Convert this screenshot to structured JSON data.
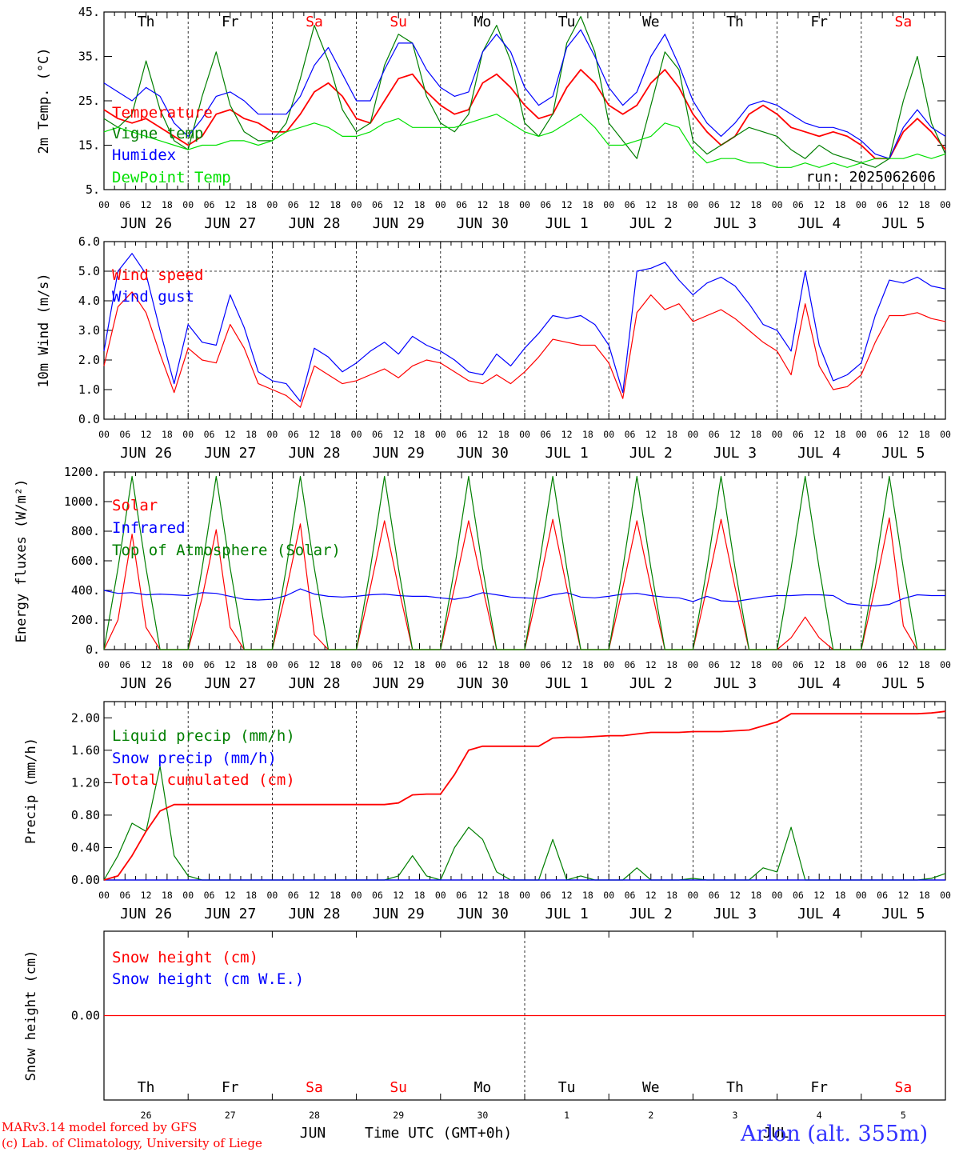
{
  "colors": {
    "red": "#ff0000",
    "green": "#007f00",
    "blue": "#0000ff",
    "lightgreen": "#00e000",
    "weekend": "#ff0000",
    "text": "#000000"
  },
  "x_axis": {
    "hour_labels": [
      "00",
      "06",
      "12",
      "18"
    ],
    "end_hour_label": "00",
    "date_labels": [
      "JUN 26",
      "JUN 27",
      "JUN 28",
      "JUN 29",
      "JUN 30",
      "JUL  1",
      "JUL  2",
      "JUL  3",
      "JUL  4",
      "JUL  5"
    ],
    "weekday_labels": [
      "Th",
      "Fr",
      "Sa",
      "Su",
      "Mo",
      "Tu",
      "We",
      "Th",
      "Fr",
      "Sa"
    ],
    "weekend_flags": [
      false,
      false,
      true,
      true,
      false,
      false,
      false,
      false,
      false,
      true
    ],
    "bottom_day_numbers": [
      "26",
      "27",
      "28",
      "29",
      "30",
      "1",
      "2",
      "3",
      "4",
      "5"
    ],
    "bottom_month_labels": [
      "JUN",
      "JUL"
    ],
    "bottom_title": "Time UTC (GMT+0h)"
  },
  "footer": {
    "credit_line1": "MARv3.14 model forced by GFS",
    "credit_line2": "(c) Lab. of Climatology, University of Liege",
    "station": "Arlon (alt. 355m)"
  },
  "chart_data": [
    {
      "type": "line",
      "ylabel": "2m Temp. (°C)",
      "yticks": [
        "5.",
        "15.",
        "25.",
        "35.",
        "45."
      ],
      "ylim": [
        5,
        45
      ],
      "annotation": "run: 2025062606",
      "series": [
        {
          "name": "Temperature",
          "color": "#ff0000",
          "values": [
            23,
            21,
            20,
            21,
            19,
            17,
            15,
            17,
            22,
            23,
            21,
            20,
            18,
            18,
            22,
            27,
            29,
            26,
            21,
            20,
            25,
            30,
            31,
            27,
            24,
            22,
            23,
            29,
            31,
            28,
            24,
            21,
            22,
            28,
            32,
            29,
            24,
            22,
            24,
            29,
            32,
            28,
            22,
            18,
            15,
            17,
            22,
            24,
            22,
            19,
            18,
            17,
            18,
            17,
            15,
            12,
            12,
            18,
            21,
            18,
            14
          ]
        },
        {
          "name": "Vigne temp",
          "color": "#007f00",
          "values": [
            21,
            19,
            22,
            34,
            23,
            16,
            14,
            26,
            36,
            24,
            18,
            16,
            16,
            20,
            30,
            42,
            34,
            23,
            18,
            20,
            33,
            40,
            38,
            26,
            20,
            18,
            22,
            36,
            42,
            34,
            20,
            17,
            22,
            38,
            44,
            36,
            20,
            16,
            12,
            24,
            36,
            32,
            16,
            13,
            15,
            17,
            19,
            18,
            17,
            14,
            12,
            15,
            13,
            12,
            11,
            10,
            12,
            25,
            35,
            20,
            13
          ]
        },
        {
          "name": "Humidex",
          "color": "#0000ff",
          "values": [
            29,
            27,
            25,
            28,
            26,
            20,
            17,
            21,
            26,
            27,
            25,
            22,
            22,
            22,
            26,
            33,
            37,
            31,
            25,
            25,
            32,
            38,
            38,
            32,
            28,
            26,
            27,
            36,
            40,
            36,
            28,
            24,
            26,
            37,
            41,
            35,
            28,
            24,
            27,
            35,
            40,
            33,
            25,
            20,
            17,
            20,
            24,
            25,
            24,
            22,
            20,
            19,
            19,
            18,
            16,
            13,
            12,
            19,
            23,
            19,
            17
          ]
        },
        {
          "name": "DewPoint Temp",
          "color": "#00e000",
          "values": [
            18,
            19,
            18,
            17,
            16,
            15,
            14,
            15,
            15,
            16,
            16,
            15,
            16,
            18,
            19,
            20,
            19,
            17,
            17,
            18,
            20,
            21,
            19,
            19,
            19,
            19,
            20,
            21,
            22,
            20,
            18,
            17,
            18,
            20,
            22,
            19,
            15,
            15,
            16,
            17,
            20,
            19,
            14,
            11,
            12,
            12,
            11,
            11,
            10,
            10,
            11,
            10,
            11,
            10,
            11,
            12,
            12,
            12,
            13,
            12,
            13
          ]
        }
      ]
    },
    {
      "type": "line",
      "ylabel": "10m Wind (m/s)",
      "yticks": [
        "0.0",
        "1.0",
        "2.0",
        "3.0",
        "4.0",
        "5.0",
        "6.0"
      ],
      "ylim": [
        0,
        6
      ],
      "reference_line": 5.0,
      "series": [
        {
          "name": "Wind speed",
          "color": "#ff0000",
          "values": [
            1.8,
            3.8,
            4.3,
            3.6,
            2.2,
            0.9,
            2.4,
            2.0,
            1.9,
            3.2,
            2.4,
            1.2,
            1.0,
            0.8,
            0.4,
            1.8,
            1.5,
            1.2,
            1.3,
            1.5,
            1.7,
            1.4,
            1.8,
            2.0,
            1.9,
            1.6,
            1.3,
            1.2,
            1.5,
            1.2,
            1.6,
            2.1,
            2.7,
            2.6,
            2.5,
            2.5,
            1.9,
            0.7,
            3.6,
            4.2,
            3.7,
            3.9,
            3.3,
            3.5,
            3.7,
            3.4,
            3.0,
            2.6,
            2.3,
            1.5,
            3.9,
            1.8,
            1.0,
            1.1,
            1.5,
            2.6,
            3.5,
            3.5,
            3.6,
            3.4,
            3.3
          ]
        },
        {
          "name": "Wind gust",
          "color": "#0000ff",
          "values": [
            2.3,
            5.0,
            5.6,
            4.9,
            3.0,
            1.2,
            3.2,
            2.6,
            2.5,
            4.2,
            3.1,
            1.6,
            1.3,
            1.2,
            0.6,
            2.4,
            2.1,
            1.6,
            1.9,
            2.3,
            2.6,
            2.2,
            2.8,
            2.5,
            2.3,
            2.0,
            1.6,
            1.5,
            2.2,
            1.8,
            2.4,
            2.9,
            3.5,
            3.4,
            3.5,
            3.2,
            2.5,
            0.9,
            5.0,
            5.1,
            5.3,
            4.7,
            4.2,
            4.6,
            4.8,
            4.5,
            3.9,
            3.2,
            3.0,
            2.3,
            5.0,
            2.5,
            1.3,
            1.5,
            1.9,
            3.5,
            4.7,
            4.6,
            4.8,
            4.5,
            4.4
          ]
        }
      ]
    },
    {
      "type": "line",
      "ylabel": "Energy fluxes (W/m²)",
      "yticks": [
        "0.",
        "200.",
        "400.",
        "600.",
        "800.",
        "1000.",
        "1200."
      ],
      "ylim": [
        0,
        1200
      ],
      "series": [
        {
          "name": "Solar",
          "color": "#ff0000",
          "values": [
            0,
            200,
            780,
            150,
            0,
            0,
            0,
            350,
            810,
            150,
            0,
            0,
            0,
            400,
            850,
            100,
            0,
            0,
            0,
            420,
            870,
            420,
            0,
            0,
            0,
            420,
            870,
            420,
            0,
            0,
            0,
            420,
            880,
            420,
            0,
            0,
            0,
            420,
            870,
            420,
            0,
            0,
            0,
            420,
            880,
            420,
            0,
            0,
            0,
            80,
            220,
            80,
            0,
            0,
            0,
            420,
            890,
            160,
            0,
            0,
            0
          ]
        },
        {
          "name": "Infrared",
          "color": "#0000ff",
          "values": [
            400,
            380,
            385,
            370,
            375,
            370,
            365,
            385,
            380,
            360,
            340,
            335,
            340,
            365,
            410,
            375,
            360,
            355,
            360,
            370,
            375,
            365,
            360,
            360,
            350,
            340,
            355,
            385,
            370,
            355,
            350,
            345,
            370,
            385,
            355,
            350,
            360,
            375,
            380,
            365,
            355,
            350,
            325,
            360,
            330,
            325,
            340,
            355,
            365,
            365,
            370,
            370,
            365,
            310,
            300,
            295,
            305,
            345,
            370,
            365,
            365
          ]
        },
        {
          "name": "Top of Atmosphere (Solar)",
          "color": "#007f00",
          "values": [
            0,
            550,
            1170,
            550,
            0,
            0,
            0,
            550,
            1170,
            550,
            0,
            0,
            0,
            550,
            1170,
            550,
            0,
            0,
            0,
            550,
            1170,
            550,
            0,
            0,
            0,
            550,
            1170,
            550,
            0,
            0,
            0,
            550,
            1170,
            550,
            0,
            0,
            0,
            550,
            1170,
            550,
            0,
            0,
            0,
            550,
            1170,
            550,
            0,
            0,
            0,
            550,
            1170,
            550,
            0,
            0,
            0,
            550,
            1170,
            550,
            0,
            0,
            0
          ]
        }
      ]
    },
    {
      "type": "line",
      "ylabel": "Precip (mm/h)",
      "yticks": [
        "0.00",
        "0.40",
        "0.80",
        "1.20",
        "1.60",
        "2.00"
      ],
      "ylim": [
        0,
        2.2
      ],
      "series": [
        {
          "name": "Liquid precip (mm/h)",
          "color": "#007f00",
          "values": [
            0,
            0.3,
            0.7,
            0.6,
            1.4,
            0.3,
            0.05,
            0,
            0,
            0,
            0,
            0,
            0,
            0,
            0,
            0,
            0,
            0,
            0,
            0,
            0,
            0.05,
            0.3,
            0.05,
            0,
            0.4,
            0.65,
            0.5,
            0.1,
            0,
            0,
            0,
            0.5,
            0,
            0.05,
            0,
            0,
            0,
            0.15,
            0,
            0,
            0,
            0.02,
            0,
            0,
            0,
            0,
            0.15,
            0.1,
            0.65,
            0,
            0,
            0,
            0,
            0,
            0,
            0,
            0,
            0,
            0.02,
            0.08
          ]
        },
        {
          "name": "Snow precip (mm/h)",
          "color": "#0000ff",
          "values": [
            0,
            0,
            0,
            0,
            0,
            0,
            0,
            0,
            0,
            0,
            0,
            0,
            0,
            0,
            0,
            0,
            0,
            0,
            0,
            0,
            0,
            0,
            0,
            0,
            0,
            0,
            0,
            0,
            0,
            0,
            0,
            0,
            0,
            0,
            0,
            0,
            0,
            0,
            0,
            0,
            0,
            0,
            0,
            0,
            0,
            0,
            0,
            0,
            0,
            0,
            0,
            0,
            0,
            0,
            0,
            0,
            0,
            0,
            0,
            0,
            0
          ]
        },
        {
          "name": "Total cumulated (cm)",
          "color": "#ff0000",
          "values": [
            0,
            0.05,
            0.3,
            0.6,
            0.85,
            0.93,
            0.93,
            0.93,
            0.93,
            0.93,
            0.93,
            0.93,
            0.93,
            0.93,
            0.93,
            0.93,
            0.93,
            0.93,
            0.93,
            0.93,
            0.93,
            0.95,
            1.05,
            1.06,
            1.06,
            1.3,
            1.6,
            1.65,
            1.65,
            1.65,
            1.65,
            1.65,
            1.75,
            1.76,
            1.76,
            1.77,
            1.78,
            1.78,
            1.8,
            1.82,
            1.82,
            1.82,
            1.83,
            1.83,
            1.83,
            1.84,
            1.85,
            1.9,
            1.95,
            2.05,
            2.05,
            2.05,
            2.05,
            2.05,
            2.05,
            2.05,
            2.05,
            2.05,
            2.05,
            2.06,
            2.08
          ]
        }
      ]
    },
    {
      "type": "line",
      "ylabel": "Snow height (cm)",
      "yticks": [
        "0.00"
      ],
      "ylim": [
        -1,
        1
      ],
      "series": [
        {
          "name": "Snow height (cm)",
          "color": "#ff0000",
          "values": [
            0,
            0,
            0,
            0,
            0,
            0,
            0,
            0,
            0,
            0,
            0,
            0,
            0,
            0,
            0,
            0,
            0,
            0,
            0,
            0,
            0,
            0,
            0,
            0,
            0,
            0,
            0,
            0,
            0,
            0,
            0,
            0,
            0,
            0,
            0,
            0,
            0,
            0,
            0,
            0,
            0,
            0,
            0,
            0,
            0,
            0,
            0,
            0,
            0,
            0,
            0,
            0,
            0,
            0,
            0,
            0,
            0,
            0,
            0,
            0,
            0
          ]
        },
        {
          "name": "Snow height (cm W.E.)",
          "color": "#0000ff",
          "values": []
        }
      ]
    }
  ]
}
